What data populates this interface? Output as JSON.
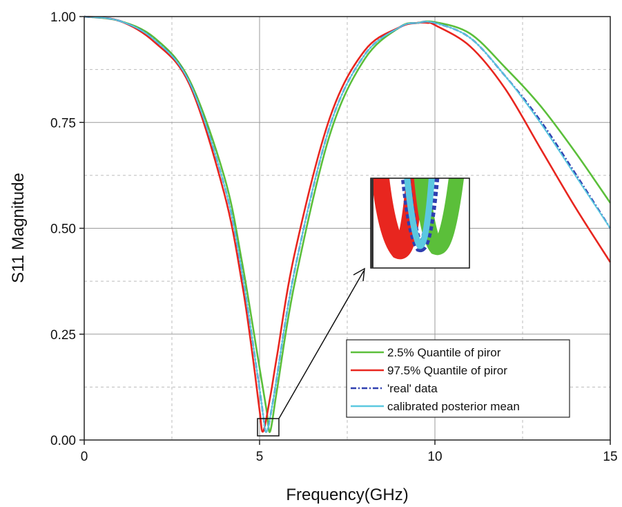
{
  "chart_data": {
    "type": "line",
    "title": "",
    "xlabel": "Frequency(GHz)",
    "ylabel": "S11 Magnitude",
    "xlim": [
      0,
      15
    ],
    "ylim": [
      0,
      1.0
    ],
    "x_ticks": [
      0,
      5,
      10,
      15
    ],
    "x_tick_labels": [
      "0",
      "5",
      "10",
      "15"
    ],
    "y_ticks": [
      0,
      0.25,
      0.5,
      0.75,
      1.0
    ],
    "y_tick_labels": [
      "0.00",
      "0.25",
      "0.50",
      "0.75",
      "1.00"
    ],
    "grid": true,
    "legend_position": "bottom-right",
    "series": [
      {
        "name": "2.5% Quantile of piror",
        "color": "#5bbf3a",
        "style": "solid",
        "x": [
          0,
          1,
          2,
          3,
          4,
          4.5,
          5,
          5.2,
          5.3,
          5.5,
          6,
          7,
          8,
          9,
          9.5,
          10,
          11,
          12,
          13,
          14,
          15
        ],
        "y": [
          1.0,
          0.99,
          0.95,
          0.85,
          0.62,
          0.42,
          0.17,
          0.07,
          0.02,
          0.12,
          0.37,
          0.72,
          0.9,
          0.975,
          0.985,
          0.987,
          0.96,
          0.88,
          0.79,
          0.68,
          0.56
        ]
      },
      {
        "name": "97.5% Quantile of piror",
        "color": "#e8261f",
        "style": "solid",
        "x": [
          0,
          1,
          2,
          3,
          4,
          4.5,
          4.8,
          5.0,
          5.1,
          5.3,
          5.5,
          6,
          7,
          8,
          9,
          9.5,
          9.8,
          10,
          11,
          12,
          13,
          14,
          15
        ],
        "y": [
          1.0,
          0.99,
          0.94,
          0.84,
          0.58,
          0.37,
          0.2,
          0.07,
          0.02,
          0.1,
          0.2,
          0.44,
          0.76,
          0.92,
          0.975,
          0.985,
          0.985,
          0.98,
          0.93,
          0.83,
          0.69,
          0.55,
          0.42
        ]
      },
      {
        "name": "'real' data",
        "color": "#2f3fb0",
        "style": "dashdot",
        "x": [
          0,
          1,
          2,
          3,
          4,
          4.5,
          5,
          5.1,
          5.2,
          5.4,
          6,
          7,
          8,
          9,
          9.5,
          10,
          11,
          12,
          13,
          14,
          15
        ],
        "y": [
          1.0,
          0.99,
          0.945,
          0.845,
          0.6,
          0.395,
          0.12,
          0.06,
          0.02,
          0.1,
          0.4,
          0.74,
          0.91,
          0.975,
          0.985,
          0.985,
          0.95,
          0.86,
          0.755,
          0.63,
          0.5
        ]
      },
      {
        "name": "calibrated posterior mean",
        "color": "#5bc8e0",
        "style": "solid",
        "x": [
          0,
          1,
          2,
          3,
          4,
          4.5,
          5,
          5.1,
          5.2,
          5.4,
          6,
          7,
          8,
          9,
          9.5,
          10,
          11,
          12,
          13,
          14,
          15
        ],
        "y": [
          1.0,
          0.99,
          0.945,
          0.845,
          0.6,
          0.395,
          0.12,
          0.06,
          0.02,
          0.1,
          0.4,
          0.74,
          0.91,
          0.975,
          0.985,
          0.985,
          0.95,
          0.86,
          0.75,
          0.625,
          0.5
        ]
      }
    ]
  }
}
